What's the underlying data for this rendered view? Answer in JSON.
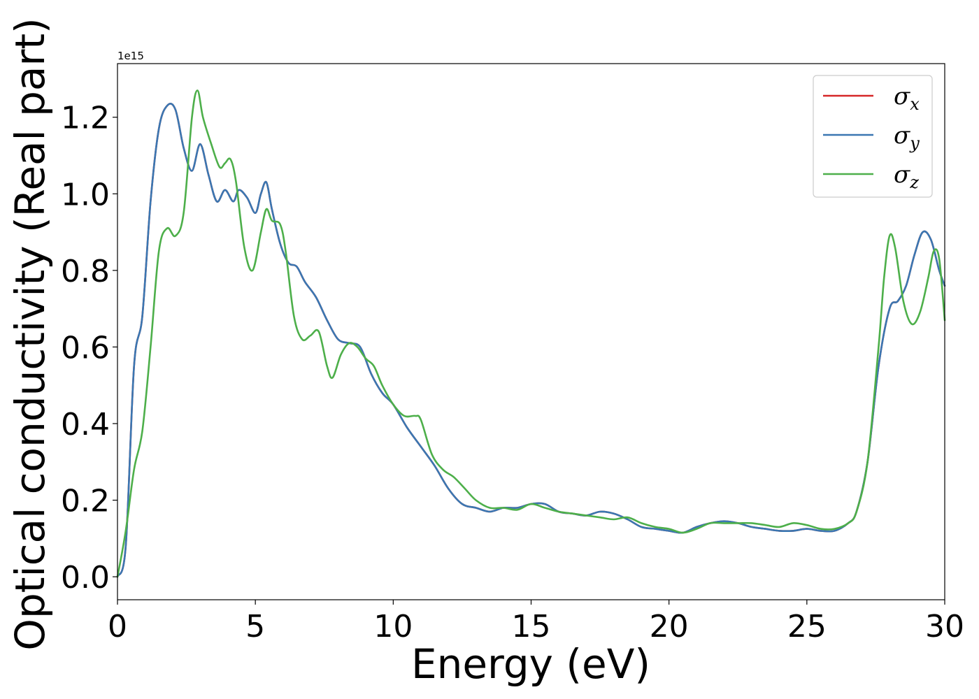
{
  "chart_data": {
    "type": "line",
    "title": "",
    "xlabel": "Energy (eV)",
    "ylabel": "Optical conductivity (Real part)",
    "y_offset_text": "1e15",
    "xlim": [
      0,
      30
    ],
    "ylim": [
      -0.06,
      1.34
    ],
    "y_scale_multiplier": 1000000000000000.0,
    "xticks": [
      0,
      5,
      10,
      15,
      20,
      25,
      30
    ],
    "xtick_labels": [
      "0",
      "5",
      "10",
      "15",
      "20",
      "25",
      "30"
    ],
    "yticks": [
      0.0,
      0.2,
      0.4,
      0.6,
      0.8,
      1.0,
      1.2
    ],
    "ytick_labels": [
      "0.0",
      "0.2",
      "0.4",
      "0.6",
      "0.8",
      "1.0",
      "1.2"
    ],
    "grid": false,
    "legend_position": "top-right",
    "series": [
      {
        "name": "σx",
        "legend_symbol": "σ",
        "legend_subscript": "x",
        "color": "#d62728",
        "x": [
          0,
          0.3,
          0.6,
          0.9,
          1.2,
          1.5,
          1.8,
          2.1,
          2.4,
          2.7,
          3.0,
          3.3,
          3.6,
          3.9,
          4.2,
          4.4,
          4.7,
          5.0,
          5.2,
          5.4,
          5.6,
          5.9,
          6.2,
          6.5,
          6.8,
          7.2,
          7.6,
          8.0,
          8.4,
          8.8,
          9.2,
          9.6,
          10.0,
          10.5,
          11.0,
          11.5,
          12.0,
          12.5,
          13.0,
          13.5,
          14.0,
          14.5,
          15.0,
          15.5,
          16.0,
          16.5,
          17.0,
          17.5,
          18.0,
          18.5,
          19.0,
          19.5,
          20.0,
          20.5,
          21.0,
          21.5,
          22.0,
          22.5,
          23.0,
          23.5,
          24.0,
          24.5,
          25.0,
          25.5,
          26.0,
          26.5,
          26.8,
          27.2,
          27.6,
          28.0,
          28.3,
          28.6,
          28.9,
          29.2,
          29.5,
          29.8,
          30.0
        ],
        "y": [
          0.0,
          0.08,
          0.55,
          0.68,
          0.98,
          1.17,
          1.23,
          1.22,
          1.12,
          1.06,
          1.13,
          1.05,
          0.98,
          1.01,
          0.98,
          1.01,
          0.99,
          0.95,
          1.0,
          1.03,
          0.96,
          0.87,
          0.82,
          0.81,
          0.77,
          0.73,
          0.67,
          0.62,
          0.61,
          0.6,
          0.53,
          0.48,
          0.45,
          0.39,
          0.34,
          0.29,
          0.23,
          0.19,
          0.18,
          0.17,
          0.18,
          0.18,
          0.19,
          0.19,
          0.17,
          0.165,
          0.16,
          0.17,
          0.165,
          0.15,
          0.13,
          0.125,
          0.12,
          0.115,
          0.13,
          0.14,
          0.145,
          0.14,
          0.13,
          0.125,
          0.12,
          0.12,
          0.125,
          0.12,
          0.12,
          0.14,
          0.17,
          0.3,
          0.55,
          0.7,
          0.72,
          0.76,
          0.84,
          0.9,
          0.88,
          0.8,
          0.76
        ]
      },
      {
        "name": "σy",
        "legend_symbol": "σ",
        "legend_subscript": "y",
        "color": "#3a77b2",
        "x": [
          0,
          0.3,
          0.6,
          0.9,
          1.2,
          1.5,
          1.8,
          2.1,
          2.4,
          2.7,
          3.0,
          3.3,
          3.6,
          3.9,
          4.2,
          4.4,
          4.7,
          5.0,
          5.2,
          5.4,
          5.6,
          5.9,
          6.2,
          6.5,
          6.8,
          7.2,
          7.6,
          8.0,
          8.4,
          8.8,
          9.2,
          9.6,
          10.0,
          10.5,
          11.0,
          11.5,
          12.0,
          12.5,
          13.0,
          13.5,
          14.0,
          14.5,
          15.0,
          15.5,
          16.0,
          16.5,
          17.0,
          17.5,
          18.0,
          18.5,
          19.0,
          19.5,
          20.0,
          20.5,
          21.0,
          21.5,
          22.0,
          22.5,
          23.0,
          23.5,
          24.0,
          24.5,
          25.0,
          25.5,
          26.0,
          26.5,
          26.8,
          27.2,
          27.6,
          28.0,
          28.3,
          28.6,
          28.9,
          29.2,
          29.5,
          29.8,
          30.0
        ],
        "y": [
          0.0,
          0.08,
          0.55,
          0.68,
          0.98,
          1.17,
          1.23,
          1.22,
          1.12,
          1.06,
          1.13,
          1.05,
          0.98,
          1.01,
          0.98,
          1.01,
          0.99,
          0.95,
          1.0,
          1.03,
          0.96,
          0.87,
          0.82,
          0.81,
          0.77,
          0.73,
          0.67,
          0.62,
          0.61,
          0.6,
          0.53,
          0.48,
          0.45,
          0.39,
          0.34,
          0.29,
          0.23,
          0.19,
          0.18,
          0.17,
          0.18,
          0.18,
          0.19,
          0.19,
          0.17,
          0.165,
          0.16,
          0.17,
          0.165,
          0.15,
          0.13,
          0.125,
          0.12,
          0.115,
          0.13,
          0.14,
          0.145,
          0.14,
          0.13,
          0.125,
          0.12,
          0.12,
          0.125,
          0.12,
          0.12,
          0.14,
          0.17,
          0.3,
          0.55,
          0.7,
          0.72,
          0.76,
          0.84,
          0.9,
          0.88,
          0.8,
          0.76
        ]
      },
      {
        "name": "σz",
        "legend_symbol": "σ",
        "legend_subscript": "z",
        "color": "#4daf4a",
        "x": [
          0,
          0.3,
          0.6,
          0.9,
          1.2,
          1.5,
          1.8,
          2.1,
          2.4,
          2.7,
          2.9,
          3.1,
          3.4,
          3.7,
          3.9,
          4.1,
          4.3,
          4.6,
          4.9,
          5.2,
          5.4,
          5.6,
          5.9,
          6.1,
          6.4,
          6.7,
          7.0,
          7.3,
          7.6,
          7.8,
          8.1,
          8.4,
          8.7,
          9.0,
          9.3,
          9.6,
          10.0,
          10.4,
          10.8,
          11.0,
          11.4,
          11.8,
          12.2,
          12.6,
          13.0,
          13.5,
          14.0,
          14.5,
          15.0,
          15.5,
          16.0,
          16.5,
          17.0,
          17.5,
          18.0,
          18.5,
          19.0,
          19.5,
          20.0,
          20.5,
          21.0,
          21.5,
          22.0,
          22.5,
          23.0,
          23.5,
          24.0,
          24.5,
          25.0,
          25.5,
          26.0,
          26.5,
          26.8,
          27.2,
          27.6,
          27.8,
          28.0,
          28.2,
          28.5,
          28.8,
          29.1,
          29.4,
          29.6,
          29.8,
          30.0
        ],
        "y": [
          0.0,
          0.12,
          0.28,
          0.38,
          0.6,
          0.85,
          0.91,
          0.89,
          0.95,
          1.2,
          1.27,
          1.2,
          1.13,
          1.07,
          1.08,
          1.09,
          1.03,
          0.86,
          0.8,
          0.9,
          0.96,
          0.93,
          0.92,
          0.85,
          0.68,
          0.62,
          0.63,
          0.64,
          0.55,
          0.52,
          0.58,
          0.61,
          0.6,
          0.57,
          0.55,
          0.5,
          0.45,
          0.42,
          0.42,
          0.41,
          0.32,
          0.28,
          0.26,
          0.23,
          0.2,
          0.18,
          0.18,
          0.175,
          0.19,
          0.18,
          0.17,
          0.165,
          0.16,
          0.155,
          0.15,
          0.155,
          0.14,
          0.13,
          0.125,
          0.115,
          0.125,
          0.14,
          0.14,
          0.14,
          0.14,
          0.135,
          0.13,
          0.14,
          0.135,
          0.125,
          0.125,
          0.14,
          0.17,
          0.3,
          0.6,
          0.78,
          0.89,
          0.86,
          0.72,
          0.66,
          0.69,
          0.78,
          0.85,
          0.83,
          0.67
        ]
      }
    ]
  }
}
